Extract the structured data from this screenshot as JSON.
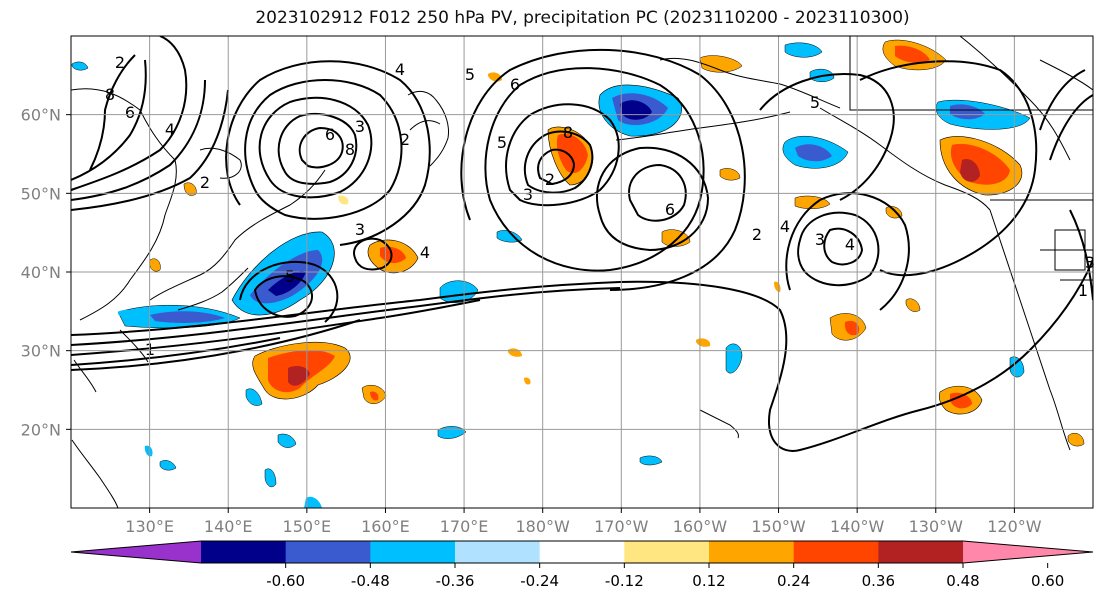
{
  "title": "2023102912 F012 250 hPa PV, precipitation PC (2023110200 - 2023110300)",
  "map": {
    "lon_range": [
      120,
      -110
    ],
    "lat_range": [
      10,
      70
    ],
    "lat_labels": [
      "60°N",
      "50°N",
      "40°N",
      "30°N",
      "20°N"
    ],
    "lon_labels": [
      "130°E",
      "140°E",
      "150°E",
      "160°E",
      "170°E",
      "180°W",
      "170°W",
      "160°W",
      "150°W",
      "140°W",
      "130°W",
      "120°W"
    ],
    "grid": true,
    "contour_labels": [
      "2",
      "8",
      "6",
      "4",
      "2",
      "3",
      "6",
      "8",
      "4",
      "3",
      "2",
      "5",
      "6",
      "5",
      "8",
      "3",
      "2",
      "5",
      "4",
      "6",
      "2",
      "4",
      "3",
      "4",
      "5",
      "3",
      "1",
      "1"
    ]
  },
  "colorbar": {
    "levels": [
      "-0.60",
      "-0.48",
      "-0.36",
      "-0.24",
      "-0.12",
      "0.12",
      "0.24",
      "0.36",
      "0.48",
      "0.60"
    ],
    "colors": [
      "#9932cc",
      "#00008b",
      "#3a5bd0",
      "#00bfff",
      "#b0e2ff",
      "#ffffff",
      "#ffe680",
      "#ffa500",
      "#ff4500",
      "#b22222",
      "#ff88aa"
    ]
  },
  "colors": {
    "land_outline": "#000000",
    "contour": "#000000",
    "grid": "#999999",
    "tick_label": "#808080"
  }
}
